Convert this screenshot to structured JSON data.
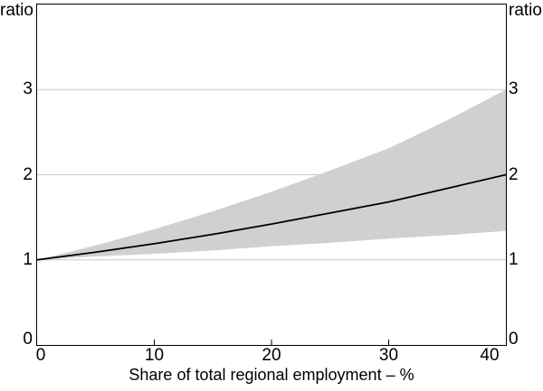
{
  "chart": {
    "left_axis_unit": "ratio",
    "right_axis_unit": "ratio",
    "xlabel": "Share of total regional employment – %",
    "y_ticks": [
      0,
      1,
      2,
      3
    ],
    "x_ticks": [
      0,
      10,
      20,
      30,
      40
    ]
  },
  "chart_data": {
    "type": "line",
    "title": "",
    "xlabel": "Share of total regional employment – %",
    "ylabel": "ratio",
    "ylabel_right": "ratio",
    "xlim": [
      0,
      40
    ],
    "ylim": [
      0,
      4
    ],
    "grid": "horizontal",
    "legend": "none",
    "x": [
      0,
      5,
      10,
      15,
      20,
      25,
      30,
      35,
      40
    ],
    "series": [
      {
        "name": "estimate-line",
        "style": "solid-line",
        "color": "#000000",
        "values": [
          1.0,
          1.09,
          1.19,
          1.3,
          1.42,
          1.55,
          1.68,
          1.84,
          2.0
        ]
      },
      {
        "name": "confidence-band-upper",
        "style": "band-edge",
        "color": "#d0d0d0",
        "values": [
          1.0,
          1.17,
          1.36,
          1.57,
          1.8,
          2.05,
          2.31,
          2.64,
          3.0
        ]
      },
      {
        "name": "confidence-band-lower",
        "style": "band-edge",
        "color": "#d0d0d0",
        "values": [
          1.0,
          1.04,
          1.07,
          1.11,
          1.16,
          1.2,
          1.25,
          1.29,
          1.34
        ]
      }
    ],
    "colors": {
      "line": "#000000",
      "band": "#d0d0d0",
      "grid": "#c8c8c8",
      "frame": "#000000",
      "tick": "#000000",
      "background": "#ffffff"
    }
  }
}
